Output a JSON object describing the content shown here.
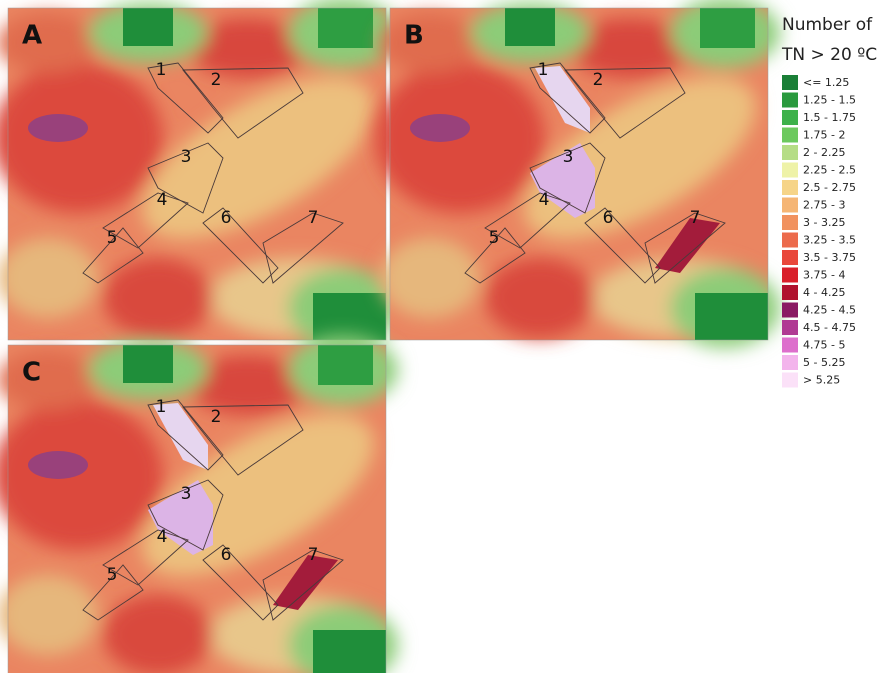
{
  "panels": [
    {
      "label": "A",
      "zones": [
        "1",
        "2",
        "3",
        "4",
        "5",
        "6",
        "7"
      ]
    },
    {
      "label": "B",
      "zones": [
        "1",
        "2",
        "3",
        "4",
        "5",
        "6",
        "7"
      ]
    },
    {
      "label": "C",
      "zones": [
        "1",
        "2",
        "3",
        "4",
        "5",
        "6",
        "7"
      ]
    }
  ],
  "legend": {
    "title": [
      "Number of",
      "TN > 20 ºC"
    ],
    "items": [
      {
        "label": "<= 1.25",
        "color": "#1a7f37"
      },
      {
        "label": "1.25 - 1.5",
        "color": "#2a9a3e"
      },
      {
        "label": "1.5 - 1.75",
        "color": "#3db14a"
      },
      {
        "label": "1.75 - 2",
        "color": "#6cc95e"
      },
      {
        "label": "2 - 2.25",
        "color": "#b5dd86"
      },
      {
        "label": "2.25 - 2.5",
        "color": "#eef2a8"
      },
      {
        "label": "2.5 - 2.75",
        "color": "#f6d488"
      },
      {
        "label": "2.75 - 3",
        "color": "#f5b574"
      },
      {
        "label": "3 - 3.25",
        "color": "#f1925f"
      },
      {
        "label": "3.25 - 3.5",
        "color": "#ec6b4c"
      },
      {
        "label": "3.5 - 3.75",
        "color": "#e9473b"
      },
      {
        "label": "3.75 - 4",
        "color": "#d91f2a"
      },
      {
        "label": "4 - 4.25",
        "color": "#b0122e"
      },
      {
        "label": "4.25 - 4.5",
        "color": "#8a1a63"
      },
      {
        "label": "4.5 - 4.75",
        "color": "#b03a93"
      },
      {
        "label": "4.75 - 5",
        "color": "#dd6fcc"
      },
      {
        "label": "5 - 5.25",
        "color": "#f3b4ec"
      },
      {
        "label": "> 5.25",
        "color": "#fbe1f8"
      }
    ]
  }
}
